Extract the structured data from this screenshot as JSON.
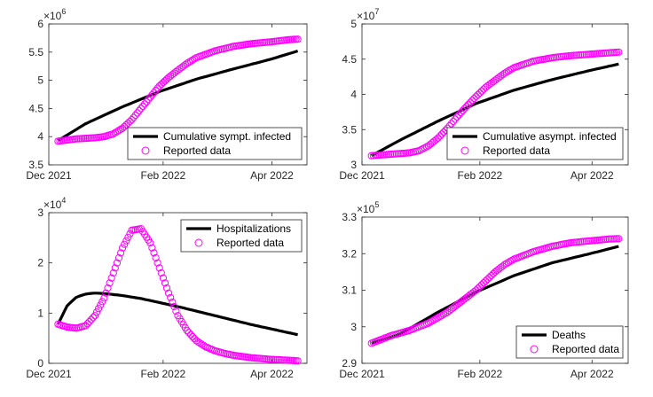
{
  "chart_data": [
    {
      "type": "line",
      "panel": "top-left",
      "title": "",
      "xlabel": "",
      "ylabel": "",
      "x_range_days": [
        0,
        140
      ],
      "xticks": [
        {
          "day": 0,
          "label": "Dec 2021"
        },
        {
          "day": 62,
          "label": "Feb 2022"
        },
        {
          "day": 121,
          "label": "Apr 2022"
        }
      ],
      "ylim": [
        3.5,
        6
      ],
      "yticks": [
        3.5,
        4,
        4.5,
        5,
        5.5,
        6
      ],
      "ytick_labels": [
        "3.5",
        "4",
        "4.5",
        "5",
        "5.5",
        "6"
      ],
      "exponent_label": "×10",
      "exponent": "6",
      "legend_position": "bottom-right",
      "series": [
        {
          "name": "Cumulative sympt. infected",
          "style": "line",
          "color": "#000000",
          "x": [
            5,
            20,
            40,
            60,
            80,
            100,
            120,
            135
          ],
          "values": [
            3.93,
            4.23,
            4.53,
            4.8,
            5.02,
            5.2,
            5.37,
            5.52
          ]
        },
        {
          "name": "Reported data",
          "style": "circle",
          "color": "#ff00ff",
          "x": [
            5,
            15,
            25,
            30,
            35,
            40,
            45,
            50,
            55,
            60,
            65,
            70,
            75,
            80,
            90,
            100,
            110,
            120,
            130,
            135
          ],
          "values": [
            3.92,
            3.96,
            3.98,
            4.0,
            4.05,
            4.15,
            4.3,
            4.5,
            4.7,
            4.9,
            5.05,
            5.18,
            5.3,
            5.4,
            5.52,
            5.6,
            5.65,
            5.68,
            5.72,
            5.73
          ]
        }
      ]
    },
    {
      "type": "line",
      "panel": "top-right",
      "title": "",
      "xlabel": "",
      "ylabel": "",
      "x_range_days": [
        0,
        140
      ],
      "xticks": [
        {
          "day": 0,
          "label": "Dec 2021"
        },
        {
          "day": 62,
          "label": "Feb 2022"
        },
        {
          "day": 121,
          "label": "Apr 2022"
        }
      ],
      "ylim": [
        3,
        5
      ],
      "yticks": [
        3,
        3.5,
        4,
        4.5,
        5
      ],
      "ytick_labels": [
        "3",
        "3.5",
        "4",
        "4.5",
        "5"
      ],
      "exponent_label": "×10",
      "exponent": "7",
      "legend_position": "bottom-right",
      "series": [
        {
          "name": "Cumulative asympt. infected",
          "style": "line",
          "color": "#000000",
          "x": [
            5,
            20,
            40,
            60,
            80,
            100,
            120,
            135
          ],
          "values": [
            3.13,
            3.35,
            3.62,
            3.87,
            4.06,
            4.21,
            4.34,
            4.43
          ]
        },
        {
          "name": "Reported data",
          "style": "circle",
          "color": "#ff00ff",
          "x": [
            5,
            15,
            25,
            30,
            35,
            40,
            45,
            50,
            55,
            60,
            65,
            70,
            75,
            80,
            90,
            100,
            110,
            120,
            130,
            135
          ],
          "values": [
            3.13,
            3.15,
            3.17,
            3.2,
            3.27,
            3.38,
            3.52,
            3.68,
            3.83,
            3.97,
            4.1,
            4.2,
            4.3,
            4.38,
            4.47,
            4.52,
            4.55,
            4.57,
            4.59,
            4.6
          ]
        }
      ]
    },
    {
      "type": "line",
      "panel": "bottom-left",
      "title": "",
      "xlabel": "",
      "ylabel": "",
      "x_range_days": [
        0,
        140
      ],
      "xticks": [
        {
          "day": 0,
          "label": "Dec 2021"
        },
        {
          "day": 62,
          "label": "Feb 2022"
        },
        {
          "day": 121,
          "label": "Apr 2022"
        }
      ],
      "ylim": [
        0,
        3
      ],
      "yticks": [
        0,
        1,
        2,
        3
      ],
      "ytick_labels": [
        "0",
        "1",
        "2",
        "3"
      ],
      "exponent_label": "×10",
      "exponent": "4",
      "legend_position": "top-right",
      "series": [
        {
          "name": "Hospitalizations",
          "style": "line",
          "color": "#000000",
          "x": [
            5,
            10,
            15,
            20,
            25,
            30,
            40,
            50,
            60,
            70,
            80,
            90,
            100,
            110,
            120,
            130,
            135
          ],
          "values": [
            0.78,
            1.15,
            1.32,
            1.38,
            1.4,
            1.39,
            1.35,
            1.29,
            1.21,
            1.13,
            1.04,
            0.95,
            0.86,
            0.77,
            0.69,
            0.61,
            0.57
          ]
        },
        {
          "name": "Reported data",
          "style": "circle",
          "color": "#ff00ff",
          "x": [
            5,
            10,
            15,
            20,
            25,
            30,
            35,
            40,
            45,
            50,
            55,
            60,
            65,
            70,
            75,
            80,
            85,
            90,
            95,
            100,
            110,
            120,
            130,
            135
          ],
          "values": [
            0.78,
            0.72,
            0.7,
            0.75,
            0.95,
            1.3,
            1.8,
            2.3,
            2.65,
            2.68,
            2.4,
            1.9,
            1.4,
            0.95,
            0.65,
            0.45,
            0.33,
            0.25,
            0.2,
            0.16,
            0.11,
            0.08,
            0.06,
            0.05
          ]
        }
      ]
    },
    {
      "type": "line",
      "panel": "bottom-right",
      "title": "",
      "xlabel": "",
      "ylabel": "",
      "x_range_days": [
        0,
        140
      ],
      "xticks": [
        {
          "day": 0,
          "label": "Dec 2021"
        },
        {
          "day": 62,
          "label": "Feb 2022"
        },
        {
          "day": 121,
          "label": "Apr 2022"
        }
      ],
      "ylim": [
        2.9,
        3.3
      ],
      "yticks": [
        2.9,
        3,
        3.1,
        3.2,
        3.3
      ],
      "ytick_labels": [
        "2.9",
        "3",
        "3.1",
        "3.2",
        "3.3"
      ],
      "exponent_label": "×10",
      "exponent": "5",
      "legend_position": "bottom-right",
      "series": [
        {
          "name": "Deaths",
          "style": "line",
          "color": "#000000",
          "x": [
            5,
            20,
            40,
            60,
            80,
            100,
            120,
            135
          ],
          "values": [
            2.955,
            2.98,
            3.04,
            3.095,
            3.14,
            3.175,
            3.2,
            3.22
          ]
        },
        {
          "name": "Reported data",
          "style": "circle",
          "color": "#ff00ff",
          "x": [
            5,
            15,
            25,
            35,
            45,
            55,
            60,
            65,
            70,
            75,
            80,
            90,
            100,
            110,
            120,
            130,
            135
          ],
          "values": [
            2.955,
            2.975,
            2.99,
            3.01,
            3.04,
            3.08,
            3.1,
            3.125,
            3.15,
            3.17,
            3.185,
            3.205,
            3.22,
            3.23,
            3.235,
            3.24,
            3.241
          ]
        }
      ]
    }
  ]
}
